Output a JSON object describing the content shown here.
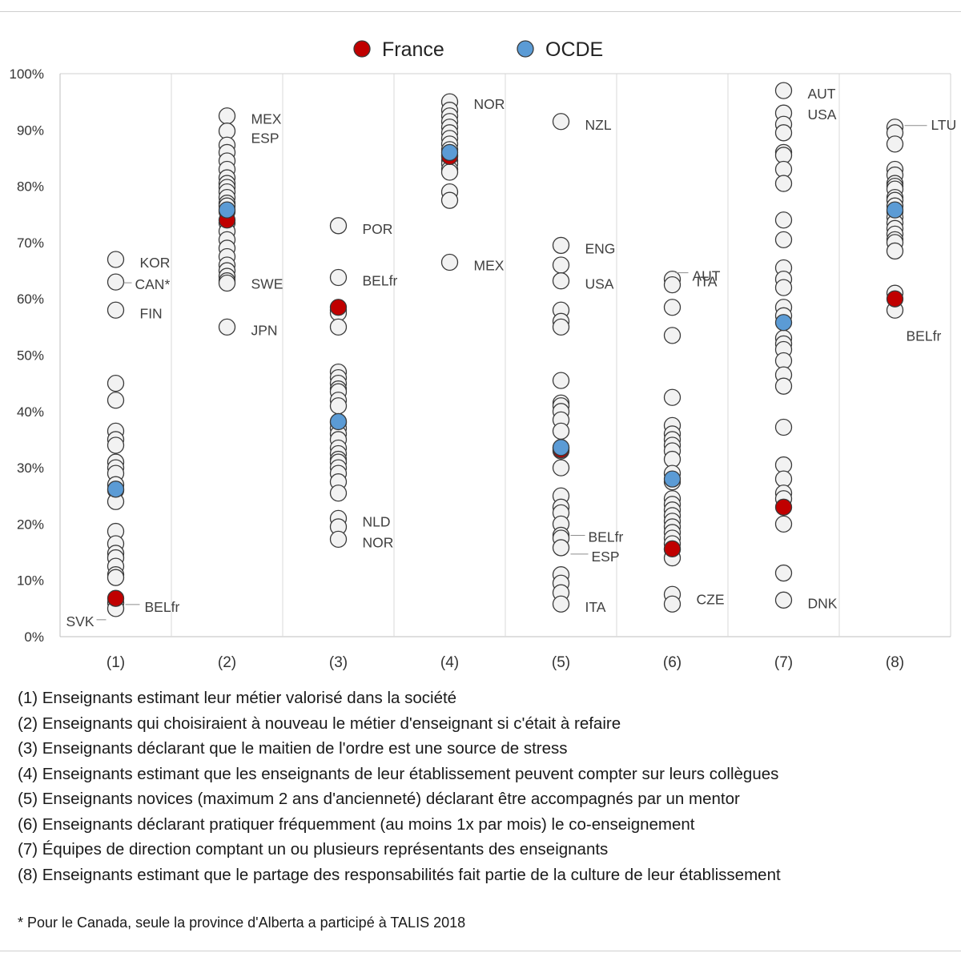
{
  "chart_data": {
    "type": "scatter",
    "categories": [
      "(1)",
      "(2)",
      "(3)",
      "(4)",
      "(5)",
      "(6)",
      "(7)",
      "(8)"
    ],
    "y_ticks": [
      "0%",
      "10%",
      "20%",
      "30%",
      "40%",
      "50%",
      "60%",
      "70%",
      "80%",
      "90%",
      "100%"
    ],
    "ylim": [
      0,
      100
    ],
    "grid": "vertical separators between categories, no horizontal gridlines",
    "legend_position": "top-center",
    "legend": [
      {
        "name": "France",
        "color": "#c00000"
      },
      {
        "name": "OCDE",
        "color": "#5b9bd5"
      }
    ],
    "other_point_color": "#f2f2f2",
    "countries": [
      [
        67,
        63,
        58,
        45,
        42,
        36.5,
        35,
        34,
        31,
        30,
        29,
        27,
        26,
        24,
        18.7,
        16.5,
        14.8,
        14,
        12.5,
        11,
        10.5,
        6,
        5
      ],
      [
        92.5,
        89.8,
        87.3,
        86,
        84.5,
        83,
        81.5,
        80.5,
        79.8,
        79,
        78,
        77,
        76.5,
        75.5,
        73.5,
        72,
        70.5,
        69,
        67.5,
        66,
        65,
        64,
        63.2,
        62.8,
        55
      ],
      [
        73,
        63.8,
        58,
        57.5,
        55,
        47,
        46,
        45,
        44,
        43.5,
        42,
        41,
        38,
        37,
        36,
        35,
        33.5,
        32.5,
        31.5,
        31,
        30,
        29,
        27.5,
        25.5,
        21,
        19.5,
        17.3
      ],
      [
        95,
        93.5,
        92.5,
        91.5,
        90.5,
        89.5,
        88.5,
        87.5,
        86.5,
        85.5,
        84.5,
        84,
        83,
        82.5,
        79,
        77.5,
        66.5
      ],
      [
        91.5,
        69.5,
        66,
        63.2,
        58,
        56,
        55,
        45.5,
        41.5,
        41,
        40,
        38.5,
        36.5,
        33.5,
        33,
        30,
        25,
        23,
        22,
        20,
        18,
        17.5,
        15.8,
        11,
        9.5,
        7.8,
        5.8
      ],
      [
        63.5,
        62.5,
        58.5,
        53.5,
        42.5,
        37.5,
        36,
        35,
        34,
        33,
        31.5,
        29,
        27.5,
        24.5,
        23.5,
        22.5,
        21.5,
        20.5,
        19.5,
        18.5,
        17.5,
        16.5,
        15.5,
        14,
        7.5,
        5.8
      ],
      [
        97,
        93,
        91,
        89.5,
        86,
        85.5,
        83,
        80.5,
        74,
        70.5,
        65.5,
        63.5,
        62,
        58.5,
        57,
        53,
        52,
        51,
        49,
        46.5,
        44.5,
        37.2,
        30.5,
        28,
        25.5,
        24.5,
        20,
        11.3,
        6.5
      ],
      [
        90.5,
        89.5,
        87.5,
        83,
        82,
        80.5,
        80,
        79.5,
        78,
        77.5,
        76.5,
        75.5,
        74.5,
        73.5,
        72.5,
        71.5,
        70.5,
        70,
        68.5,
        61,
        58
      ]
    ],
    "series": [
      {
        "name": "France",
        "values": [
          6.8,
          74,
          58.5,
          85.3,
          33.2,
          15.6,
          23,
          60
        ]
      },
      {
        "name": "OCDE",
        "values": [
          26.2,
          75.8,
          38.2,
          86,
          33.6,
          28,
          55.8,
          75.8
        ]
      }
    ],
    "annotations": [
      {
        "category": "(1)",
        "text": "KOR",
        "y": 67
      },
      {
        "category": "(1)",
        "text": "CAN*",
        "y": 63
      },
      {
        "category": "(1)",
        "text": "FIN",
        "y": 58
      },
      {
        "category": "(1)",
        "text": "BELfr",
        "y": 6
      },
      {
        "category": "(1)",
        "text": "SVK",
        "y": 5
      },
      {
        "category": "(2)",
        "text": "MEX",
        "y": 92.5
      },
      {
        "category": "(2)",
        "text": "ESP",
        "y": 89.8
      },
      {
        "category": "(2)",
        "text": "SWE",
        "y": 63.2
      },
      {
        "category": "(2)",
        "text": "JPN",
        "y": 55
      },
      {
        "category": "(3)",
        "text": "POR",
        "y": 73
      },
      {
        "category": "(3)",
        "text": "BELfr",
        "y": 63.8
      },
      {
        "category": "(3)",
        "text": "NLD",
        "y": 21
      },
      {
        "category": "(3)",
        "text": "NOR",
        "y": 17.3
      },
      {
        "category": "(4)",
        "text": "NOR",
        "y": 95
      },
      {
        "category": "(4)",
        "text": "MEX",
        "y": 66.5
      },
      {
        "category": "(5)",
        "text": "NZL",
        "y": 91.5
      },
      {
        "category": "(5)",
        "text": "ENG",
        "y": 69.5
      },
      {
        "category": "(5)",
        "text": "USA",
        "y": 63.2
      },
      {
        "category": "(5)",
        "text": "BELfr",
        "y": 18
      },
      {
        "category": "(5)",
        "text": "ESP",
        "y": 15.8
      },
      {
        "category": "(5)",
        "text": "ITA",
        "y": 5.8
      },
      {
        "category": "(6)",
        "text": "AUT",
        "y": 63.5
      },
      {
        "category": "(6)",
        "text": "ITA",
        "y": 62.5
      },
      {
        "category": "(6)",
        "text": "CZE",
        "y": 7.5
      },
      {
        "category": "(7)",
        "text": "AUT",
        "y": 97
      },
      {
        "category": "(7)",
        "text": "USA",
        "y": 93
      },
      {
        "category": "(7)",
        "text": "DNK",
        "y": 6.5
      },
      {
        "category": "(8)",
        "text": "LTU",
        "y": 90.5
      },
      {
        "category": "(8)",
        "text": "BELfr",
        "y": 58
      }
    ]
  },
  "notes": [
    "(1) Enseignants estimant leur métier valorisé dans la société",
    "(2) Enseignants qui choisiraient à nouveau le métier d'enseignant si c'était à refaire",
    "(3) Enseignants déclarant que le maitien de l'ordre est une source de stress",
    "(4) Enseignants estimant que les enseignants de leur établissement peuvent compter sur leurs collègues",
    "(5) Enseignants novices (maximum 2 ans d'ancienneté) déclarant être accompagnés par un mentor",
    "(6) Enseignants déclarant pratiquer fréquemment (au moins 1x par mois) le co-enseignement",
    "(7) Équipes de direction comptant un ou plusieurs représentants des enseignants",
    "(8) Enseignants estimant que le partage des responsabilités fait partie de la culture de leur établissement"
  ],
  "footnote": "* Pour le Canada, seule la province d'Alberta a participé à TALIS 2018"
}
